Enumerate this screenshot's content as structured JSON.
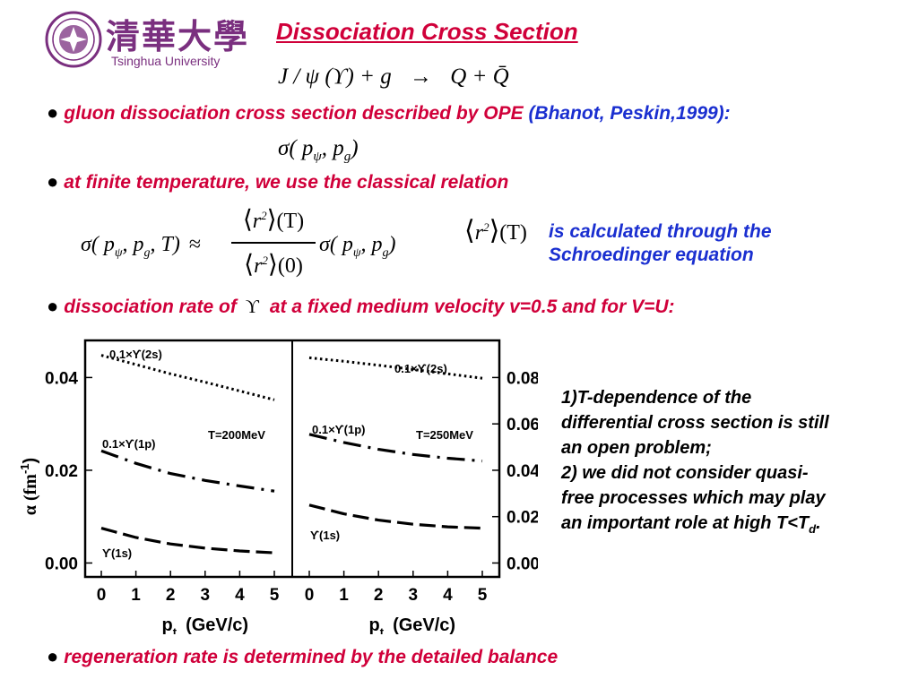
{
  "logo": {
    "chinese": "清華大學",
    "english": "Tsinghua University",
    "color": "#7a2f7f"
  },
  "title": "Dissociation Cross Section",
  "reaction": {
    "lhs": "J / ψ (ϒ) + g",
    "arrow": "→",
    "rhs": "Q + Q̄"
  },
  "bullets": [
    {
      "text": "gluon dissociation cross section described by OPE",
      "ref": "(Bhanot, Peskin,1999):"
    },
    {
      "text": "at finite temperature, we use the classical relation"
    },
    {
      "text_before": "dissociation rate of",
      "symbol": "ϒ",
      "text_after": "at a fixed medium velocity v=0.5 and for V=U:"
    },
    {
      "text": "regeneration rate is determined by the detailed balance"
    }
  ],
  "formulas": {
    "sigma": "σ( p",
    "sigma_sub_psi": "ψ",
    "sigma_mid": ", p",
    "sigma_sub_g": "g",
    "sigma_end": ")",
    "finite_lhs": "σ( p",
    "finite_mid": ", p",
    "finite_T": ", T)",
    "approx": "≈",
    "numerator_r": "r",
    "numerator_T": "(T)",
    "denominator_r": "r",
    "denominator_0": "(0)",
    "r_power": "2",
    "r_T_label": "(T)"
  },
  "schroedinger_note": [
    "is calculated through the",
    "Schroedinger equation"
  ],
  "notes": [
    "1)T-dependence of the",
    "differential cross section is still",
    "an open problem;",
    "2) we did not consider quasi-",
    "free processes which may play",
    "an important role at high T<T"
  ],
  "notes_sub": "d",
  "notes_end": ".",
  "colors": {
    "red": "#d0003a",
    "blue": "#1a2fd0"
  },
  "chart_data": [
    {
      "type": "line",
      "panel_label": "T=200MeV",
      "ylabel": "α (fm",
      "ylabel_sup": "-1",
      "ylabel_end": ")",
      "xlabel": "p",
      "xlabel_sub": "t",
      "xlabel_units": "(GeV/c)",
      "xlim": [
        0,
        5
      ],
      "ylim": [
        -0.003,
        0.048
      ],
      "xticks": [
        "0",
        "1",
        "2",
        "3",
        "4",
        "5"
      ],
      "yticks": [
        {
          "value": 0.0,
          "label": "0.00"
        },
        {
          "value": 0.02,
          "label": "0.02"
        },
        {
          "value": 0.04,
          "label": "0.04"
        }
      ],
      "series": [
        {
          "name": "0.1×ϒ(2s)",
          "style": "dotted",
          "x": [
            0,
            1,
            2,
            3,
            4,
            5
          ],
          "y": [
            0.0448,
            0.0428,
            0.0408,
            0.039,
            0.0371,
            0.0352
          ]
        },
        {
          "name": "0.1×ϒ(1p)",
          "style": "dashdot",
          "x": [
            0,
            1,
            2,
            3,
            4,
            5
          ],
          "y": [
            0.0242,
            0.0215,
            0.0193,
            0.0178,
            0.0166,
            0.0155
          ]
        },
        {
          "name": "ϒ(1s)",
          "style": "dashed",
          "x": [
            0,
            1,
            2,
            3,
            4,
            5
          ],
          "y": [
            0.0075,
            0.0055,
            0.0041,
            0.0032,
            0.0026,
            0.0022
          ]
        }
      ]
    },
    {
      "type": "line",
      "panel_label": "T=250MeV",
      "xlabel": "p",
      "xlabel_sub": "t",
      "xlabel_units": "(GeV/c)",
      "xlim": [
        0,
        5
      ],
      "ylim": [
        -0.006,
        0.096
      ],
      "xticks": [
        "0",
        "1",
        "2",
        "3",
        "4",
        "5"
      ],
      "yticks": [
        {
          "value": 0.0,
          "label": "0.00"
        },
        {
          "value": 0.02,
          "label": "0.02"
        },
        {
          "value": 0.04,
          "label": "0.04"
        },
        {
          "value": 0.06,
          "label": "0.06"
        },
        {
          "value": 0.08,
          "label": "0.08"
        }
      ],
      "series": [
        {
          "name": "0.1×ϒ(2s)",
          "style": "dotted",
          "x": [
            0,
            1,
            2,
            3,
            4,
            5
          ],
          "y": [
            0.0885,
            0.087,
            0.0853,
            0.0835,
            0.0816,
            0.0797
          ]
        },
        {
          "name": "0.1×ϒ(1p)",
          "style": "dashdot",
          "x": [
            0,
            1,
            2,
            3,
            4,
            5
          ],
          "y": [
            0.0555,
            0.052,
            0.049,
            0.0468,
            0.0452,
            0.044
          ]
        },
        {
          "name": "ϒ(1s)",
          "style": "dashed",
          "x": [
            0,
            1,
            2,
            3,
            4,
            5
          ],
          "y": [
            0.025,
            0.0212,
            0.0185,
            0.0167,
            0.0156,
            0.015
          ]
        }
      ]
    }
  ]
}
